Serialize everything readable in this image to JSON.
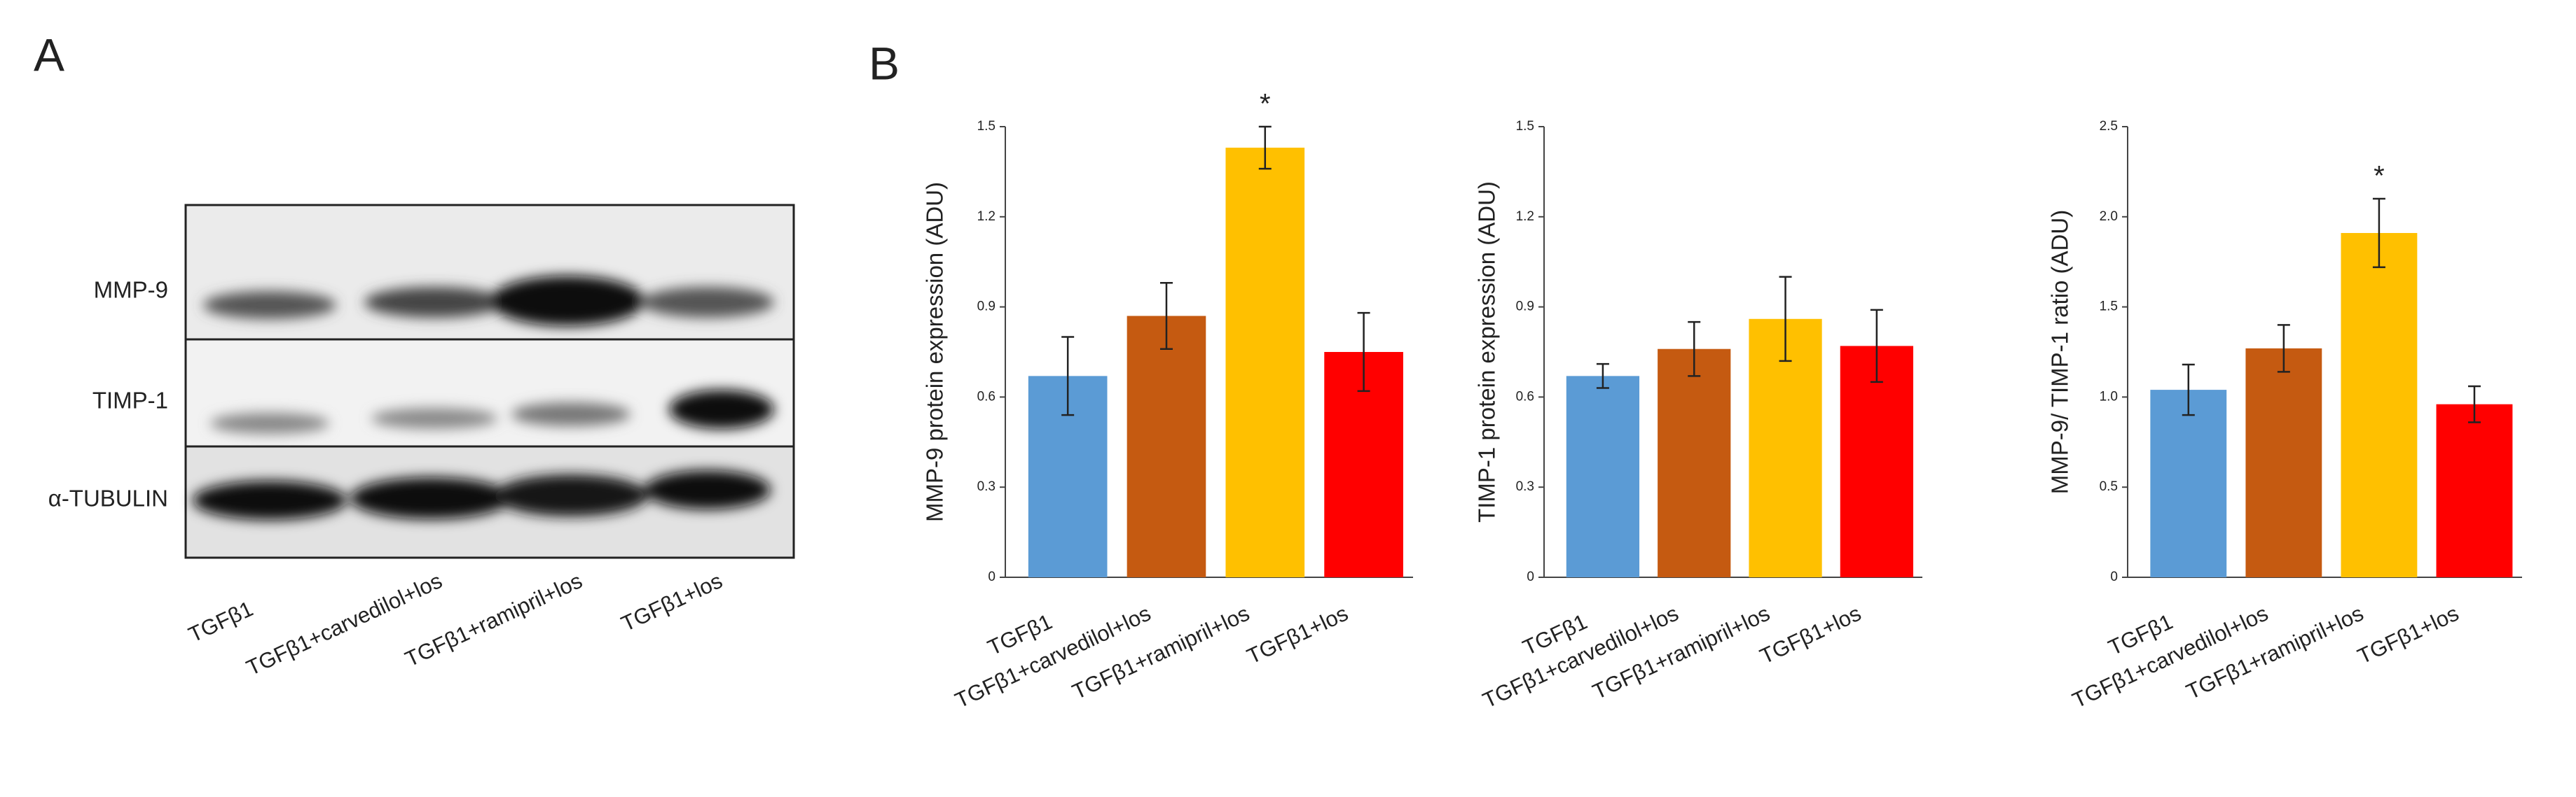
{
  "panels": {
    "a": "A",
    "b": "B"
  },
  "blot": {
    "rows": [
      "MMP-9",
      "TIMP-1",
      "α-TUBULIN"
    ],
    "lanes": [
      "TGFβ1",
      "TGFβ1+carvedilol+los",
      "TGFβ1+ramipril+los",
      "TGFβ1+los"
    ]
  },
  "chart_data": [
    {
      "type": "bar",
      "y_label": "MMP-9 protein expression (ADU)",
      "categories": [
        "TGFβ1",
        "TGFβ1+carvedilol+los",
        "TGFβ1+ramipril+los",
        "TGFβ1+los"
      ],
      "values": [
        0.67,
        0.87,
        1.43,
        0.75
      ],
      "errors": [
        0.13,
        0.11,
        0.07,
        0.13
      ],
      "colors": [
        "#5b9bd5",
        "#c55a11",
        "#ffc000",
        "#ff0000"
      ],
      "significance": [
        null,
        null,
        "*",
        null
      ],
      "ylim": [
        0,
        1.5
      ],
      "yticks": [
        0,
        0.3,
        0.6,
        0.9,
        1.2,
        1.5
      ],
      "grid": false
    },
    {
      "type": "bar",
      "y_label": "TIMP-1 protein expression (ADU)",
      "categories": [
        "TGFβ1",
        "TGFβ1+carvedilol+los",
        "TGFβ1+ramipril+los",
        "TGFβ1+los"
      ],
      "values": [
        0.67,
        0.76,
        0.86,
        0.77
      ],
      "errors": [
        0.04,
        0.09,
        0.14,
        0.12
      ],
      "colors": [
        "#5b9bd5",
        "#c55a11",
        "#ffc000",
        "#ff0000"
      ],
      "significance": [
        null,
        null,
        null,
        null
      ],
      "ylim": [
        0,
        1.5
      ],
      "yticks": [
        0,
        0.3,
        0.6,
        0.9,
        1.2,
        1.5
      ],
      "grid": false
    },
    {
      "type": "bar",
      "y_label": "MMP-9/ TIMP-1 ratio (ADU)",
      "categories": [
        "TGFβ1",
        "TGFβ1+carvedilol+los",
        "TGFβ1+ramipril+los",
        "TGFβ1+los"
      ],
      "values": [
        1.04,
        1.27,
        1.91,
        0.96
      ],
      "errors": [
        0.14,
        0.13,
        0.19,
        0.1
      ],
      "colors": [
        "#5b9bd5",
        "#c55a11",
        "#ffc000",
        "#ff0000"
      ],
      "significance": [
        null,
        null,
        "*",
        null
      ],
      "ylim": [
        0,
        2.5
      ],
      "yticks": [
        0,
        0.5,
        {
          "value": 1,
          "label": "1.0"
        },
        1.5,
        {
          "value": 2,
          "label": "2.0"
        },
        2.5
      ],
      "grid": false
    }
  ]
}
